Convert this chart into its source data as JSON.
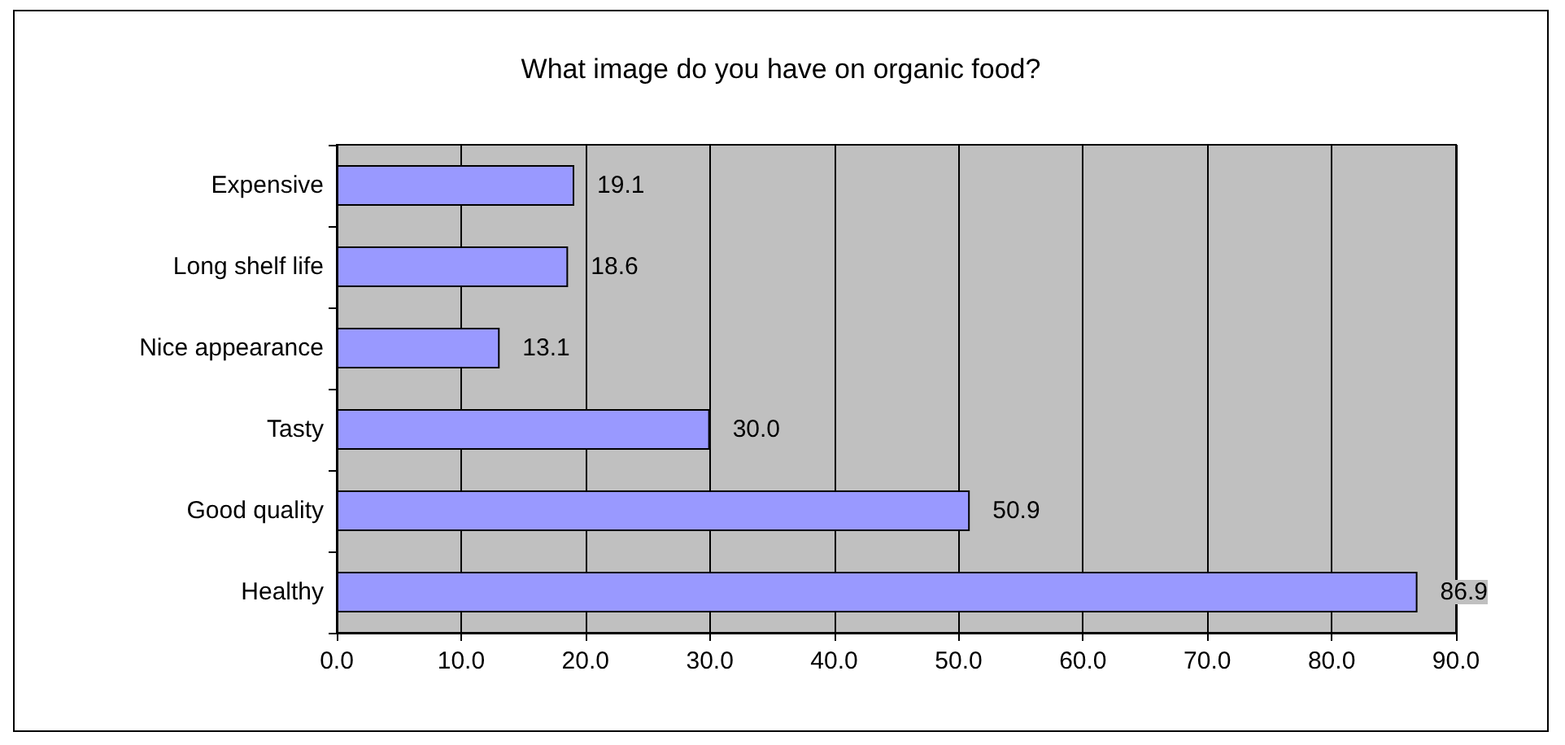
{
  "chart_data": {
    "type": "bar",
    "orientation": "horizontal",
    "title": "What image do you have on organic food?",
    "categories": [
      "Expensive",
      "Long shelf life",
      "Nice appearance",
      "Tasty",
      "Good quality",
      "Healthy"
    ],
    "values": [
      19.1,
      18.6,
      13.1,
      30.0,
      50.9,
      86.9
    ],
    "value_labels": [
      "19.1",
      "18.6",
      "13.1",
      "30.0",
      "50.9",
      "86.9"
    ],
    "color": "#9999ff",
    "xlim": [
      0,
      90
    ],
    "xticks": [
      {
        "value": 0,
        "label": "0.0"
      },
      {
        "value": 10,
        "label": "10.0"
      },
      {
        "value": 20,
        "label": "20.0"
      },
      {
        "value": 30,
        "label": "30.0"
      },
      {
        "value": 40,
        "label": "40.0"
      },
      {
        "value": 50,
        "label": "50.0"
      },
      {
        "value": 60,
        "label": "60.0"
      },
      {
        "value": 70,
        "label": "70.0"
      },
      {
        "value": 80,
        "label": "80.0"
      },
      {
        "value": 90,
        "label": "90.0"
      }
    ],
    "grid": "x"
  }
}
